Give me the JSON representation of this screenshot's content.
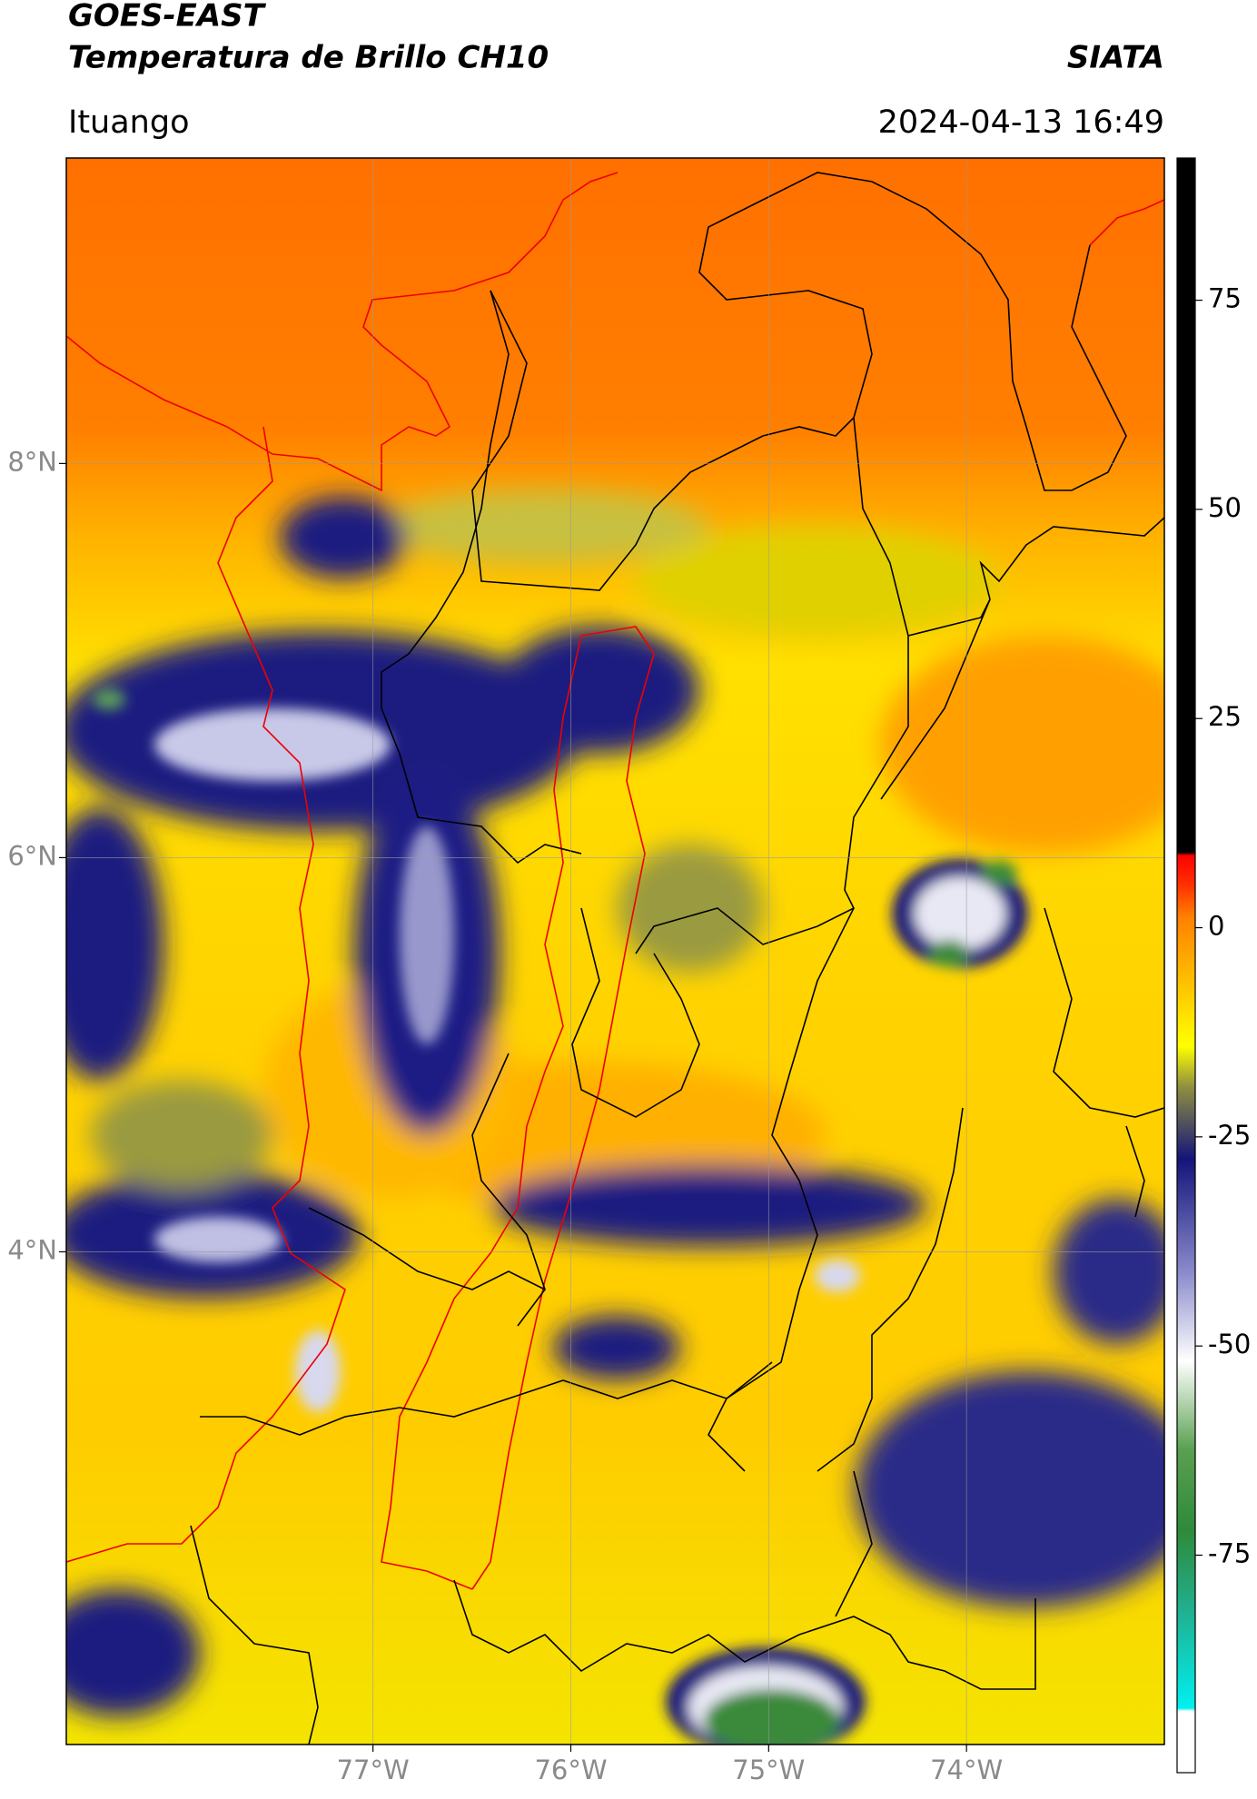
{
  "chart_data": {
    "type": "map",
    "title": "GOES-EAST",
    "subtitle": "Temperatura de Brillo CH10",
    "title_right": "SIATA",
    "location": "Ituango",
    "datetime": "2024-04-13 16:49",
    "xlim": [
      -78.55,
      -73.0
    ],
    "ylim": [
      1.5,
      9.55
    ],
    "xticks": [
      {
        "value": -77,
        "label": "77°W"
      },
      {
        "value": -76,
        "label": "76°W"
      },
      {
        "value": -75,
        "label": "75°W"
      },
      {
        "value": -74,
        "label": "74°W"
      }
    ],
    "yticks": [
      {
        "value": 8,
        "label": "8°N"
      },
      {
        "value": 6,
        "label": "6°N"
      },
      {
        "value": 4,
        "label": "4°N"
      }
    ],
    "grid": true,
    "colorbar": {
      "lim": [
        -101,
        92
      ],
      "ticks": [
        75,
        50,
        25,
        0,
        -25,
        -50,
        -75
      ]
    }
  }
}
